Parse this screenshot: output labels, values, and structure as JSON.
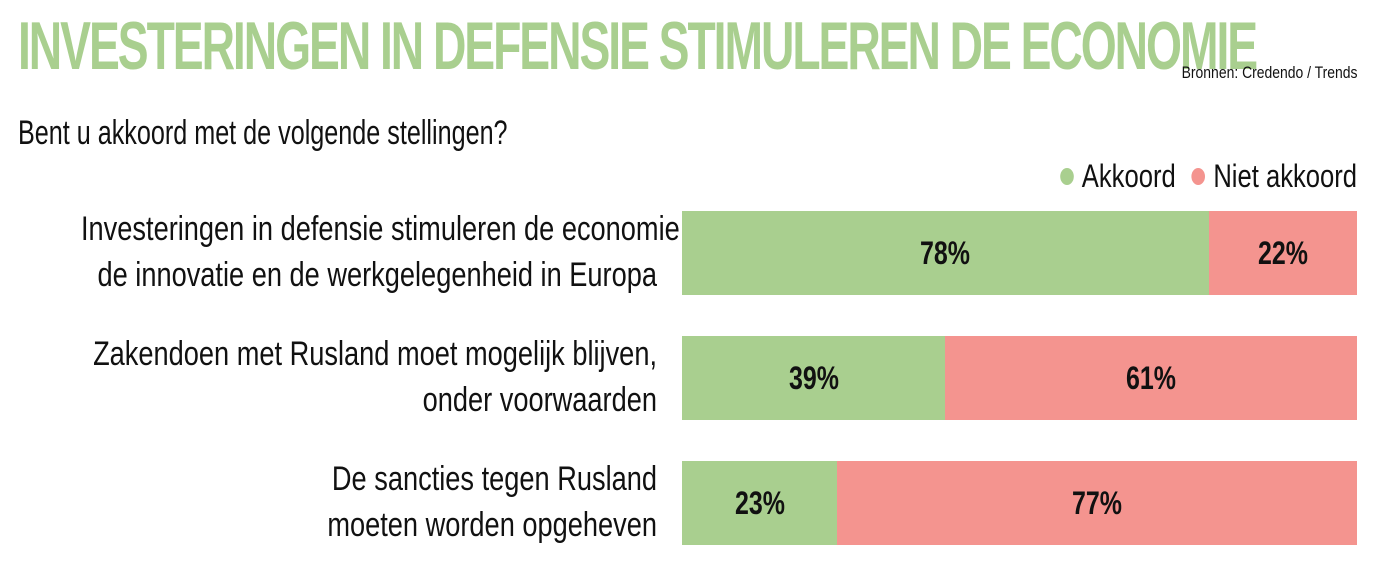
{
  "title": "INVESTERINGEN IN DEFENSIE STIMULEREN DE ECONOMIE",
  "source": "Bronnen: Credendo / Trends",
  "colors": {
    "title": "#a9cf8f",
    "akkoord": "#a9cf8f",
    "niet_akkoord": "#f4948f"
  },
  "chart_data": {
    "type": "bar",
    "orientation": "horizontal",
    "stacked": true,
    "subtitle": "Bent u akkoord met de volgende stellingen?",
    "legend_position": "top-right",
    "categories": [
      [
        "Investeringen in defensie stimuleren de economie,",
        "de innovatie en de werkgelegenheid in Europa"
      ],
      [
        "Zakendoen met Rusland moet mogelijk blijven,",
        "onder voorwaarden"
      ],
      [
        "De sancties tegen Rusland",
        "moeten worden opgeheven"
      ]
    ],
    "series": [
      {
        "name": "Akkoord",
        "values": [
          78,
          39,
          23
        ],
        "labels": [
          "78%",
          "39%",
          "23%"
        ]
      },
      {
        "name": "Niet akkoord",
        "values": [
          22,
          61,
          77
        ],
        "labels": [
          "22%",
          "61%",
          "77%"
        ]
      }
    ],
    "xlim": [
      0,
      100
    ],
    "grid": false
  }
}
